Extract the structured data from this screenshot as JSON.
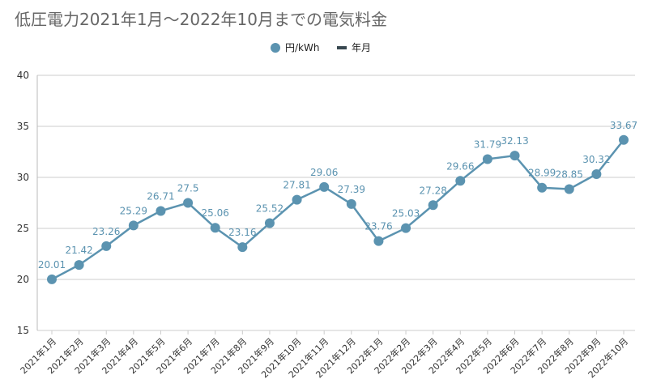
{
  "title": "低圧電力2021年1月～2022年10月までの電気料金",
  "legend": [
    {
      "label": "円/kWh",
      "color": "#5b93b0",
      "shape": "dot"
    },
    {
      "label": "年月",
      "color": "#37474f",
      "shape": "bar"
    }
  ],
  "chart_data": {
    "type": "line",
    "title": "低圧電力2021年1月～2022年10月までの電気料金",
    "xlabel": "",
    "ylabel": "",
    "categories": [
      "2021年1月",
      "2021年2月",
      "2021年3月",
      "2021年4月",
      "2021年5月",
      "2021年6月",
      "2021年7月",
      "2021年8月",
      "2021年9月",
      "2021年10月",
      "2021年11月",
      "2021年12月",
      "2022年1月",
      "2022年2月",
      "2022年3月",
      "2022年4月",
      "2022年5月",
      "2022年6月",
      "2022年7月",
      "2022年8月",
      "2022年9月",
      "2022年10月"
    ],
    "series": [
      {
        "name": "円/kWh",
        "color": "#5b93b0",
        "values": [
          20.01,
          21.42,
          23.26,
          25.29,
          26.71,
          27.5,
          25.06,
          23.16,
          25.52,
          27.81,
          29.06,
          27.39,
          23.76,
          25.03,
          27.28,
          29.66,
          31.79,
          32.13,
          28.99,
          28.85,
          30.32,
          33.67
        ]
      }
    ],
    "ylim": [
      15,
      40
    ],
    "yticks": [
      15,
      20,
      25,
      30,
      35,
      40
    ],
    "grid": true,
    "legend_position": "top-center"
  }
}
